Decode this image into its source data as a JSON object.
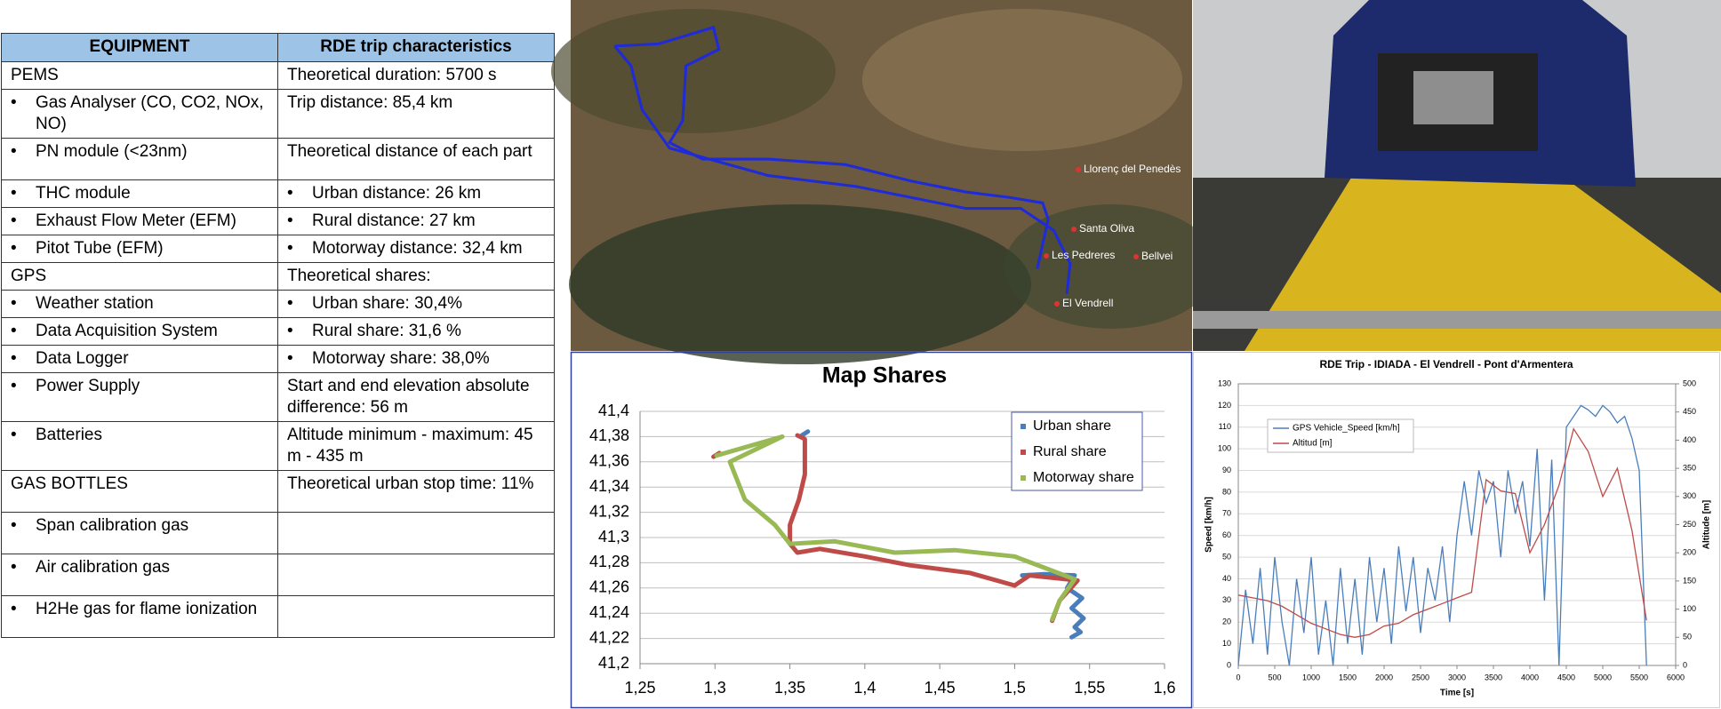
{
  "table": {
    "header": [
      "EQUIPMENT",
      "RDE trip characteristics"
    ],
    "rows": [
      {
        "left": "PEMS",
        "right": "Theoretical duration: 5700 s"
      },
      {
        "left": "Gas Analyser (CO, CO2, NOx, NO)",
        "left_bullet": true,
        "right": "Trip distance: 85,4 km"
      },
      {
        "left": "PN module (<23nm)",
        "left_bullet": true,
        "right": "Theoretical distance of each part"
      },
      {
        "left": "THC module",
        "left_bullet": true,
        "right": "Urban distance: 26 km",
        "right_bullet": true
      },
      {
        "left": "Exhaust Flow Meter (EFM)",
        "left_bullet": true,
        "right": "Rural distance: 27 km",
        "right_bullet": true
      },
      {
        "left": "Pitot Tube (EFM)",
        "left_bullet": true,
        "right": "Motorway distance: 32,4 km",
        "right_bullet": true
      },
      {
        "left": "GPS",
        "right": "Theoretical shares:"
      },
      {
        "left": "Weather station",
        "left_bullet": true,
        "right": "Urban share: 30,4%",
        "right_bullet": true
      },
      {
        "left": "Data Acquisition System",
        "left_bullet": true,
        "right": "Rural share: 31,6 %",
        "right_bullet": true
      },
      {
        "left": "Data Logger",
        "left_bullet": true,
        "right": "Motorway share: 38,0%",
        "right_bullet": true
      },
      {
        "left": "Power Supply",
        "left_bullet": true,
        "right": "Start and end elevation absolute difference: 56 m"
      },
      {
        "left": "Batteries",
        "left_bullet": true,
        "right": "Altitude minimum -  maximum: 45 m -  435 m"
      },
      {
        "left": "GAS BOTTLES",
        "right": "Theoretical urban stop time: 11%"
      },
      {
        "left": "Span calibration gas",
        "left_bullet": true
      },
      {
        "left": "Air calibration gas",
        "left_bullet": true
      },
      {
        "left": "H2He gas for flame ionization",
        "left_bullet": true
      }
    ]
  },
  "satellite_map": {
    "labels": [
      "Llorenç del Penedès",
      "Santa Oliva",
      "Les Pedreres",
      "Bellvei",
      "El Vendrell"
    ]
  },
  "chart_data": [
    {
      "type": "scatter",
      "title": "Map Shares",
      "xlim": [
        1.25,
        1.6
      ],
      "xticks": [
        {
          "value": 1.25,
          "label": "1,25"
        },
        {
          "value": 1.3,
          "label": "1,3"
        },
        {
          "value": 1.35,
          "label": "1,35"
        },
        {
          "value": 1.4,
          "label": "1,4"
        },
        {
          "value": 1.45,
          "label": "1,45"
        },
        {
          "value": 1.5,
          "label": "1,5"
        },
        {
          "value": 1.55,
          "label": "1,55"
        },
        {
          "value": 1.6,
          "label": "1,6"
        }
      ],
      "ylim": [
        41.2,
        41.4
      ],
      "yticks": [
        {
          "value": 41.2,
          "label": "41,2"
        },
        {
          "value": 41.22,
          "label": "41,22"
        },
        {
          "value": 41.24,
          "label": "41,24"
        },
        {
          "value": 41.26,
          "label": "41,26"
        },
        {
          "value": 41.28,
          "label": "41,28"
        },
        {
          "value": 41.3,
          "label": "41,3"
        },
        {
          "value": 41.32,
          "label": "41,32"
        },
        {
          "value": 41.34,
          "label": "41,34"
        },
        {
          "value": 41.36,
          "label": "41,36"
        },
        {
          "value": 41.38,
          "label": "41,38"
        },
        {
          "value": 41.4,
          "label": "41,4"
        }
      ],
      "grid": true,
      "legend": "upper right",
      "series": [
        {
          "name": "Urban share",
          "color": "#4a7ebb",
          "x": [
            1.358,
            1.362,
            null,
            1.505,
            1.52,
            1.54,
            1.535,
            1.545,
            1.538,
            1.546,
            1.54,
            1.544,
            1.538
          ],
          "values": [
            41.381,
            41.384,
            null,
            41.27,
            41.271,
            41.27,
            41.26,
            41.252,
            41.244,
            41.236,
            41.229,
            41.225,
            41.221
          ]
        },
        {
          "name": "Rural share",
          "color": "#be4b48",
          "x": [
            1.525,
            1.53,
            1.542,
            1.51,
            1.5,
            1.47,
            1.43,
            1.4,
            1.37,
            1.355,
            1.35,
            1.35,
            1.356,
            1.36,
            1.36,
            1.355,
            null,
            1.299,
            1.303
          ],
          "values": [
            41.234,
            41.25,
            41.266,
            41.27,
            41.262,
            41.272,
            41.278,
            41.285,
            41.291,
            41.288,
            41.295,
            41.31,
            41.33,
            41.35,
            41.378,
            41.381,
            null,
            41.364,
            41.367
          ]
        },
        {
          "name": "Motorway share",
          "color": "#98b954",
          "x": [
            1.301,
            1.345,
            1.31,
            1.32,
            1.34,
            1.35,
            1.38,
            1.42,
            1.46,
            1.5,
            1.54,
            1.53,
            1.525
          ],
          "values": [
            41.365,
            41.38,
            41.36,
            41.33,
            41.31,
            41.295,
            41.297,
            41.288,
            41.29,
            41.285,
            41.267,
            41.25,
            41.235
          ]
        }
      ]
    },
    {
      "type": "line",
      "title": "RDE Trip - IDIADA - El Vendrell - Pont d'Armentera",
      "xlabel": "Time [s]",
      "ylabel": "Speed [km/h]",
      "y2label": "Altitude [m]",
      "xlim": [
        0,
        6000
      ],
      "xticks": [
        0,
        500,
        1000,
        1500,
        2000,
        2500,
        3000,
        3500,
        4000,
        4500,
        5000,
        5500,
        6000
      ],
      "ylim": [
        0,
        130
      ],
      "yticks": [
        0,
        10,
        20,
        30,
        40,
        50,
        60,
        70,
        80,
        90,
        100,
        110,
        120,
        130
      ],
      "y2lim": [
        0,
        500
      ],
      "y2ticks": [
        0,
        50,
        100,
        150,
        200,
        250,
        300,
        350,
        400,
        450,
        500
      ],
      "grid": true,
      "legend": "upper left",
      "series": [
        {
          "name": "GPS Vehicle_Speed [km/h]",
          "color": "#4a7ebb",
          "x": [
            0,
            100,
            200,
            300,
            400,
            500,
            600,
            700,
            800,
            900,
            1000,
            1100,
            1200,
            1300,
            1400,
            1500,
            1600,
            1700,
            1800,
            1900,
            2000,
            2100,
            2200,
            2300,
            2400,
            2500,
            2600,
            2700,
            2800,
            2900,
            3000,
            3100,
            3200,
            3300,
            3400,
            3500,
            3600,
            3700,
            3800,
            3900,
            4000,
            4100,
            4200,
            4300,
            4400,
            4500,
            4600,
            4700,
            4800,
            4900,
            5000,
            5100,
            5200,
            5300,
            5400,
            5500,
            5600
          ],
          "values": [
            0,
            35,
            10,
            45,
            5,
            50,
            20,
            0,
            40,
            15,
            50,
            5,
            30,
            0,
            45,
            10,
            40,
            5,
            50,
            20,
            45,
            10,
            55,
            25,
            50,
            15,
            45,
            30,
            55,
            20,
            60,
            85,
            60,
            90,
            75,
            85,
            50,
            90,
            70,
            85,
            55,
            100,
            30,
            95,
            0,
            110,
            115,
            120,
            118,
            115,
            120,
            117,
            112,
            115,
            105,
            90,
            0
          ]
        },
        {
          "name": "Altitud  [m]",
          "color": "#be4b48",
          "axis": "y2",
          "x": [
            0,
            200,
            400,
            600,
            800,
            1000,
            1200,
            1400,
            1600,
            1800,
            2000,
            2200,
            2400,
            2600,
            2800,
            3000,
            3200,
            3400,
            3600,
            3800,
            4000,
            4200,
            4400,
            4600,
            4800,
            5000,
            5200,
            5400,
            5600
          ],
          "values": [
            125,
            120,
            115,
            105,
            90,
            75,
            65,
            55,
            50,
            55,
            70,
            75,
            90,
            100,
            110,
            120,
            130,
            330,
            310,
            305,
            200,
            250,
            320,
            420,
            380,
            300,
            350,
            240,
            80
          ]
        }
      ]
    }
  ]
}
